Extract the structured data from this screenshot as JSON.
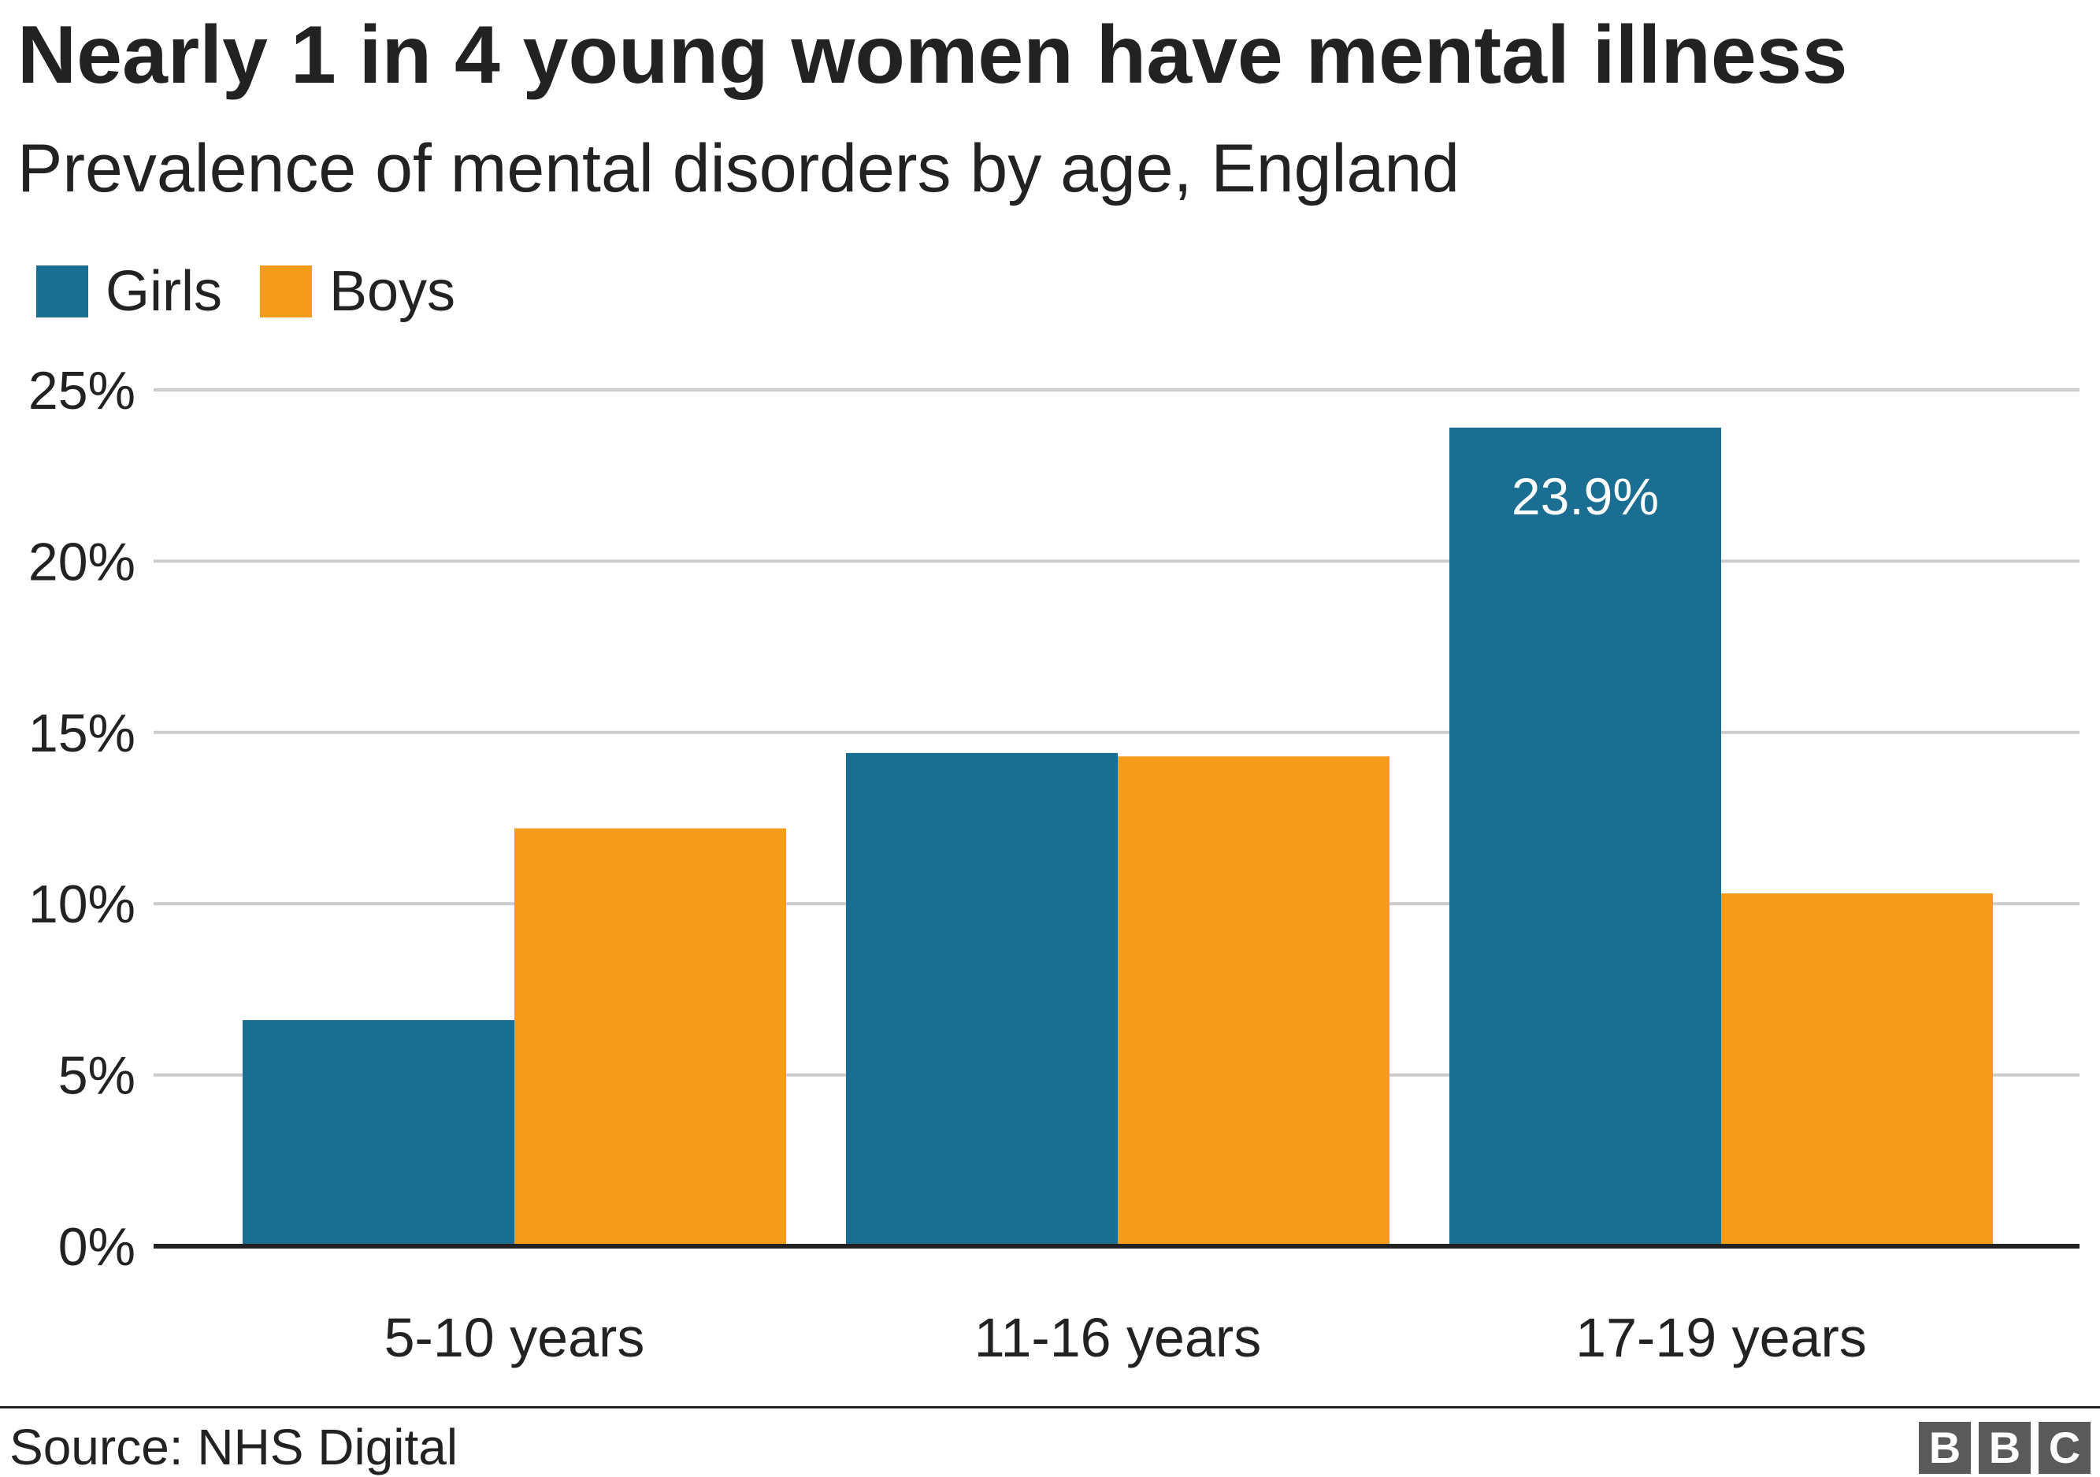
{
  "chart_data": {
    "type": "bar",
    "title": "Nearly 1 in 4 young women have mental illness",
    "subtitle": "Prevalence of mental disorders by age, England",
    "categories": [
      "5-10 years",
      "11-16 years",
      "17-19 years"
    ],
    "series": [
      {
        "name": "Girls",
        "color": "#1a6e92",
        "values": [
          6.6,
          14.4,
          23.9
        ]
      },
      {
        "name": "Boys",
        "color": "#f59c1a",
        "values": [
          12.2,
          14.3,
          10.3
        ]
      }
    ],
    "data_labels": [
      {
        "series": "Girls",
        "category": "17-19 years",
        "text": "23.9%"
      }
    ],
    "y_ticks": [
      "0%",
      "5%",
      "10%",
      "15%",
      "20%",
      "25%"
    ],
    "ylim": [
      0,
      25
    ],
    "xlabel": "",
    "ylabel": "",
    "grid": true,
    "legend_position": "top-left"
  },
  "footer": {
    "source": "Source: NHS Digital",
    "logo": [
      "B",
      "B",
      "C"
    ]
  },
  "colors": {
    "girls": "#1a6e92",
    "boys": "#f59c1a",
    "gridline": "#cccccc",
    "axis": "#222222"
  }
}
